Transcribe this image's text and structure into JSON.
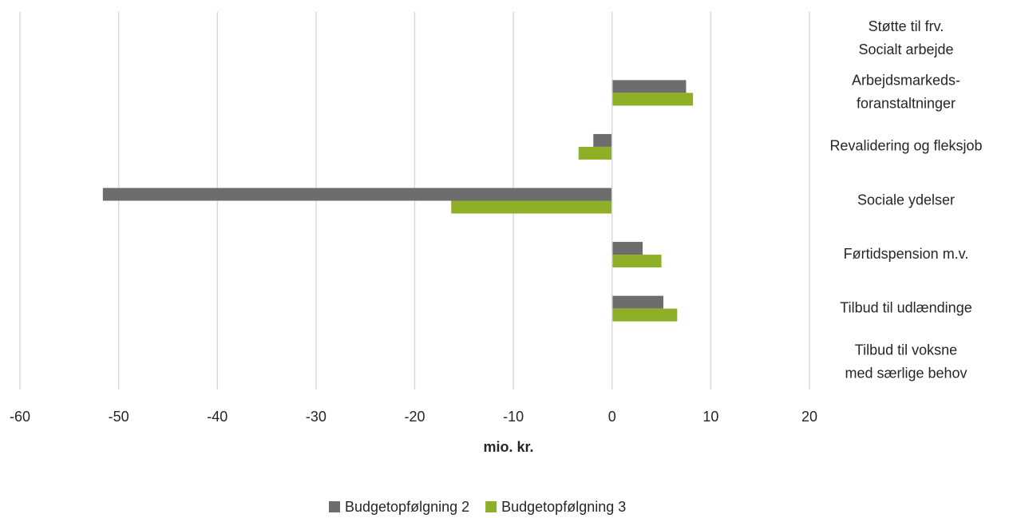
{
  "chart_data": {
    "type": "hbar",
    "xlabel": "mio. kr.",
    "categories": [
      [
        "Støtte til frv.",
        "Socialt arbejde"
      ],
      [
        "Arbejdsmarkeds-",
        "foranstaltninger"
      ],
      [
        "Revalidering og fleksjob"
      ],
      [
        "Sociale ydelser"
      ],
      [
        "Førtidspension m.v."
      ],
      [
        "Tilbud til udlændinge"
      ],
      [
        "Tilbud til voksne",
        "med særlige behov"
      ]
    ],
    "series": [
      {
        "name": "Budgetopfølgning 2",
        "color": "#6d6d6d",
        "values": [
          null,
          7.5,
          -1.9,
          -51.6,
          3.1,
          5.2,
          null
        ]
      },
      {
        "name": "Budgetopfølgning 3",
        "color": "#8faf26",
        "values": [
          null,
          8.2,
          -3.4,
          -16.3,
          5.0,
          6.6,
          null
        ]
      }
    ],
    "xlim": [
      -60,
      20
    ],
    "xticks": [
      -60,
      -50,
      -40,
      -30,
      -20,
      -10,
      0,
      10,
      20
    ],
    "grid": true
  }
}
